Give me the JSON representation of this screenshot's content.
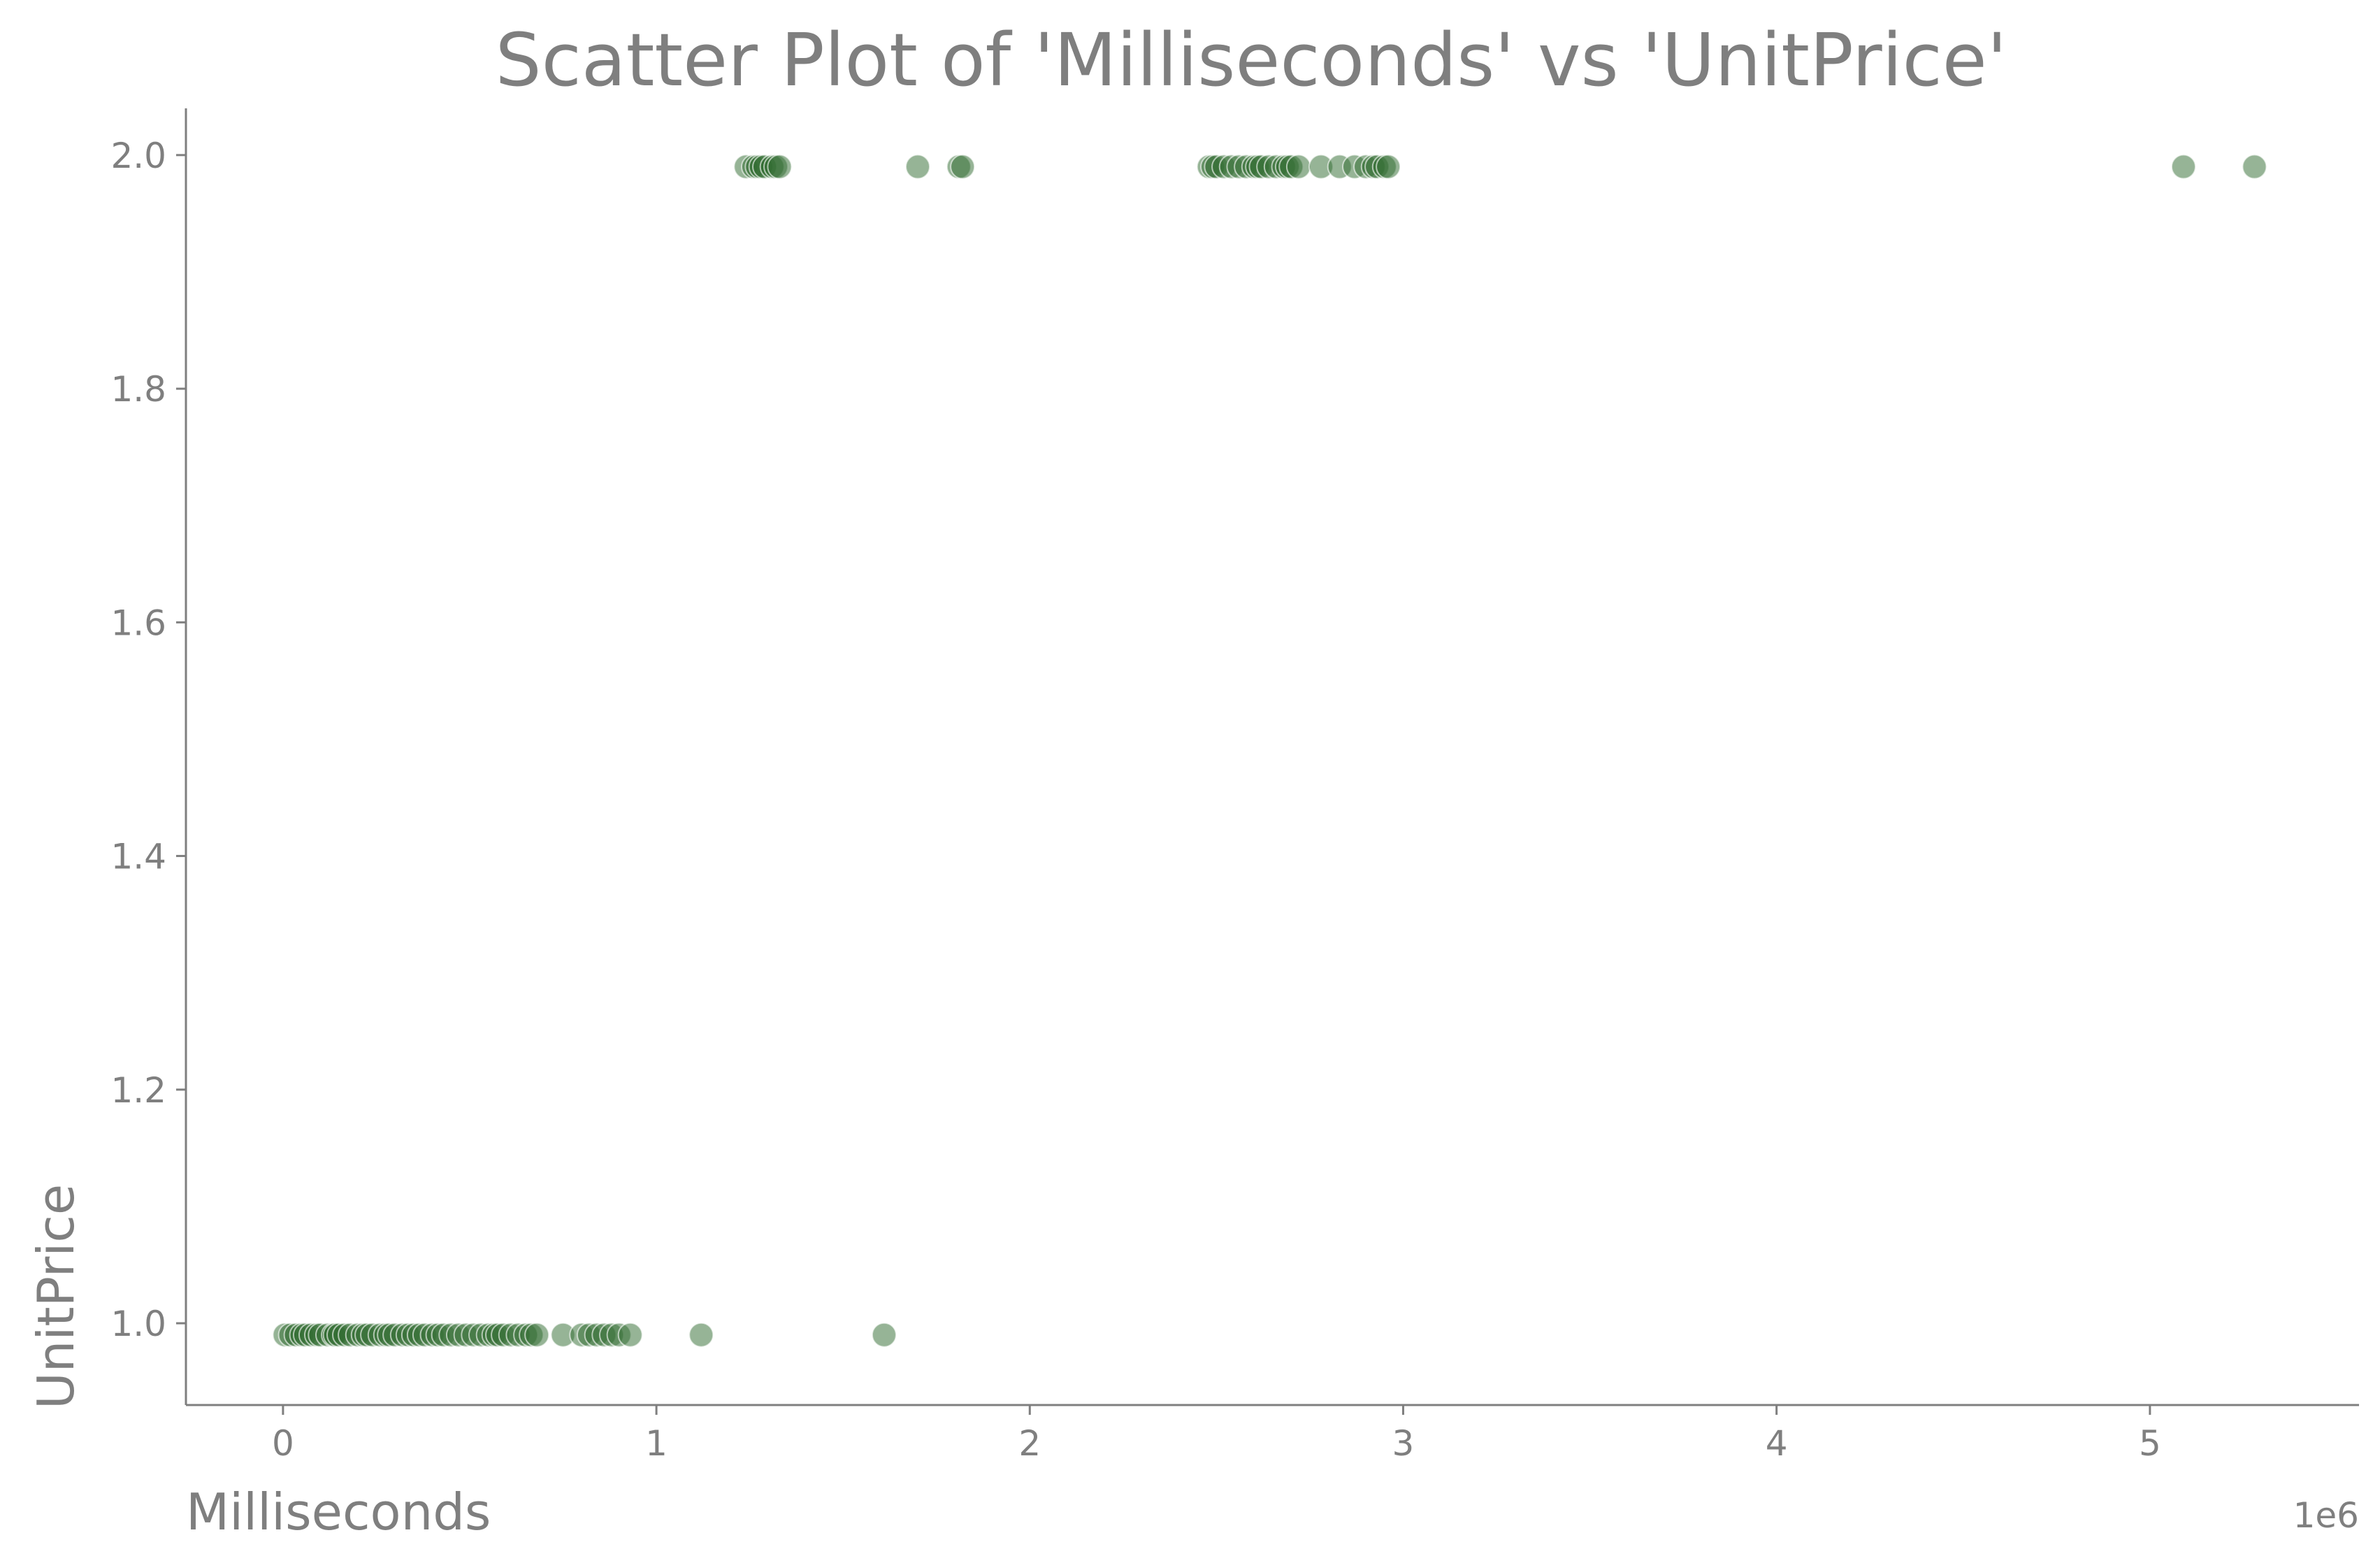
{
  "chart_data": {
    "type": "scatter",
    "title": "Scatter Plot of 'Milliseconds' vs 'UnitPrice'",
    "xlabel": "Milliseconds",
    "ylabel": "UnitPrice",
    "x_offset_label": "1e6",
    "xlim": [
      -260000,
      5560000
    ],
    "ylim": [
      0.93,
      2.04
    ],
    "x_ticks": [
      0,
      1000000,
      2000000,
      3000000,
      4000000,
      5000000
    ],
    "x_tick_labels": [
      "0",
      "1",
      "2",
      "3",
      "4",
      "5"
    ],
    "y_ticks": [
      1.0,
      1.2,
      1.4,
      1.6,
      1.8,
      2.0
    ],
    "y_tick_labels": [
      "1.0",
      "1.2",
      "1.4",
      "1.6",
      "1.8",
      "2.0"
    ],
    "grid": false,
    "marker_color": "#2e6a2e",
    "marker_alpha": 0.5,
    "series": [
      {
        "x": [
          5000,
          20000,
          35000,
          50000,
          60000,
          75000,
          90000,
          100000,
          120000,
          135000,
          140000,
          150000,
          165000,
          180000,
          200000,
          215000,
          225000,
          240000,
          260000,
          275000,
          285000,
          300000,
          320000,
          335000,
          350000,
          365000,
          380000,
          400000,
          415000,
          430000,
          450000,
          470000,
          490000,
          510000,
          530000,
          550000,
          565000,
          575000,
          590000,
          610000,
          630000,
          650000,
          665000,
          680000,
          750000,
          800000,
          820000,
          840000,
          860000,
          880000,
          900000,
          930000,
          1120000,
          1610000,
          1240000,
          1260000,
          1270000,
          1280000,
          1290000,
          1310000,
          1320000,
          1330000,
          1700000,
          1810000,
          1820000,
          2480000,
          2490000,
          2500000,
          2520000,
          2540000,
          2560000,
          2580000,
          2600000,
          2610000,
          2620000,
          2640000,
          2660000,
          2680000,
          2690000,
          2700000,
          2720000,
          2780000,
          2830000,
          2870000,
          2900000,
          2920000,
          2930000,
          2950000,
          2960000,
          5090000,
          5280000
        ],
        "y": [
          0.99,
          0.99,
          0.99,
          0.99,
          0.99,
          0.99,
          0.99,
          0.99,
          0.99,
          0.99,
          0.99,
          0.99,
          0.99,
          0.99,
          0.99,
          0.99,
          0.99,
          0.99,
          0.99,
          0.99,
          0.99,
          0.99,
          0.99,
          0.99,
          0.99,
          0.99,
          0.99,
          0.99,
          0.99,
          0.99,
          0.99,
          0.99,
          0.99,
          0.99,
          0.99,
          0.99,
          0.99,
          0.99,
          0.99,
          0.99,
          0.99,
          0.99,
          0.99,
          0.99,
          0.99,
          0.99,
          0.99,
          0.99,
          0.99,
          0.99,
          0.99,
          0.99,
          0.99,
          0.99,
          1.99,
          1.99,
          1.99,
          1.99,
          1.99,
          1.99,
          1.99,
          1.99,
          1.99,
          1.99,
          1.99,
          1.99,
          1.99,
          1.99,
          1.99,
          1.99,
          1.99,
          1.99,
          1.99,
          1.99,
          1.99,
          1.99,
          1.99,
          1.99,
          1.99,
          1.99,
          1.99,
          1.99,
          1.99,
          1.99,
          1.99,
          1.99,
          1.99,
          1.99,
          1.99,
          1.99,
          1.99
        ]
      }
    ]
  }
}
